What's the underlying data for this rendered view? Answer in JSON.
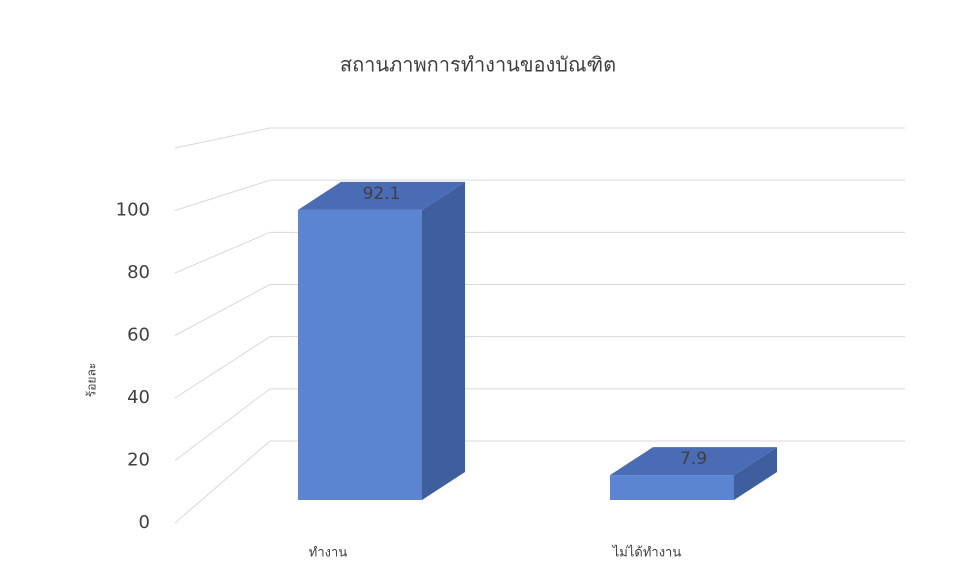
{
  "chart_data": {
    "type": "bar3d",
    "title": "สถานภาพการทำงานของบัณฑิต",
    "y_label": "ร้อยละ",
    "categories": [
      "ทำงาน",
      "ไม่ได้ทำงาน"
    ],
    "values": [
      92.1,
      7.9
    ],
    "color": "#5b84d1",
    "ylim": [
      0,
      120
    ],
    "yticks": [
      0,
      20,
      40,
      60,
      80,
      100
    ],
    "grid": true
  }
}
